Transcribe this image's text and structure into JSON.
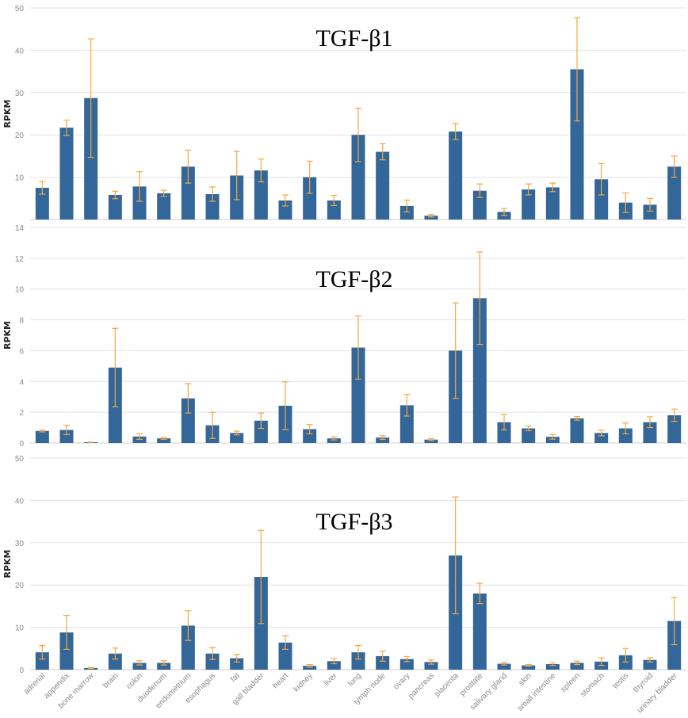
{
  "colors": {
    "bar": "#336699",
    "error": "#f5a742",
    "grid": "#e3e3e3",
    "axis": "#cfcfcf"
  },
  "chart_data": [
    {
      "type": "bar",
      "title": "TGF-β1",
      "ylabel": "RPKM",
      "ylim": [
        0,
        50
      ],
      "yticks": [
        10,
        20,
        30,
        40,
        50
      ],
      "grid": true,
      "categories": [
        "adrenal",
        "appendix",
        "bone marrow",
        "brain",
        "colon",
        "duodenum",
        "endometrium",
        "esophagus",
        "fat",
        "gall bladder",
        "heart",
        "kidney",
        "liver",
        "lung",
        "lymph node",
        "ovary",
        "pancreas",
        "placenta",
        "prostate",
        "salivary gland",
        "skin",
        "small intestine",
        "spleen",
        "stomach",
        "testis",
        "thyroid",
        "urinary bladder"
      ],
      "values": [
        7.5,
        21.7,
        28.7,
        5.8,
        7.8,
        6.2,
        12.5,
        6.0,
        10.4,
        11.6,
        4.5,
        10.0,
        4.5,
        20.0,
        16.0,
        3.2,
        0.9,
        20.8,
        6.8,
        1.8,
        7.1,
        7.6,
        35.5,
        9.5,
        4.0,
        3.5,
        12.5
      ],
      "errors": [
        1.5,
        1.8,
        14.0,
        0.9,
        3.5,
        0.7,
        3.9,
        1.7,
        5.7,
        2.7,
        1.3,
        3.8,
        1.2,
        6.3,
        1.9,
        1.4,
        0.3,
        1.9,
        1.6,
        0.8,
        1.3,
        1.0,
        12.2,
        3.7,
        2.3,
        1.5,
        2.5
      ]
    },
    {
      "type": "bar",
      "title": "TGF-β2",
      "ylabel": "RPKM",
      "ylim": [
        0,
        14
      ],
      "yticks": [
        0,
        2,
        4,
        6,
        8,
        10,
        12,
        14
      ],
      "grid": true,
      "categories": [
        "adrenal",
        "appendix",
        "bone marrow",
        "brain",
        "colon",
        "duodenum",
        "endometrium",
        "esophagus",
        "fat",
        "gall bladder",
        "heart",
        "kidney",
        "liver",
        "lung",
        "lymph node",
        "ovary",
        "pancreas",
        "placenta",
        "prostate",
        "salivary gland",
        "skin",
        "small intestine",
        "spleen",
        "stomach",
        "testis",
        "thyroid",
        "urinary bladder"
      ],
      "values": [
        0.78,
        0.85,
        0.05,
        4.9,
        0.42,
        0.3,
        2.9,
        1.15,
        0.65,
        1.45,
        2.42,
        0.9,
        0.3,
        6.2,
        0.35,
        2.45,
        0.22,
        6.0,
        9.4,
        1.35,
        0.95,
        0.4,
        1.6,
        0.65,
        0.95,
        1.35,
        1.8
      ],
      "errors": [
        0.06,
        0.3,
        0.01,
        2.55,
        0.18,
        0.06,
        0.95,
        0.85,
        0.12,
        0.5,
        1.55,
        0.3,
        0.1,
        2.05,
        0.12,
        0.7,
        0.06,
        3.1,
        3.0,
        0.5,
        0.15,
        0.15,
        0.12,
        0.18,
        0.35,
        0.35,
        0.4
      ]
    },
    {
      "type": "bar",
      "title": "TGF-β3",
      "ylabel": "RPKM",
      "ylim": [
        0,
        50
      ],
      "yticks": [
        0,
        10,
        20,
        30,
        40,
        50
      ],
      "grid": true,
      "categories": [
        "adrenal",
        "appendix",
        "bone marrow",
        "brain",
        "colon",
        "duodenum",
        "endometrium",
        "esophagus",
        "fat",
        "gall bladder",
        "heart",
        "kidney",
        "liver",
        "lung",
        "lymph node",
        "ovary",
        "pancreas",
        "placenta",
        "prostate",
        "salivary gland",
        "skin",
        "small intestine",
        "spleen",
        "stomach",
        "testis",
        "thyroid",
        "urinary bladder"
      ],
      "values": [
        4.1,
        8.8,
        0.4,
        3.8,
        1.6,
        1.6,
        10.4,
        3.8,
        2.7,
        21.9,
        6.4,
        0.9,
        2.0,
        4.1,
        3.2,
        2.5,
        1.8,
        27.0,
        18.0,
        1.4,
        1.0,
        1.3,
        1.6,
        1.9,
        3.4,
        2.3,
        11.5
      ],
      "errors": [
        1.6,
        4.0,
        0.15,
        1.3,
        0.5,
        0.5,
        3.5,
        1.4,
        0.9,
        11.0,
        1.6,
        0.3,
        0.6,
        1.6,
        1.2,
        0.6,
        0.5,
        13.8,
        2.4,
        0.3,
        0.2,
        0.3,
        0.4,
        0.9,
        1.6,
        0.5,
        5.6
      ]
    }
  ]
}
